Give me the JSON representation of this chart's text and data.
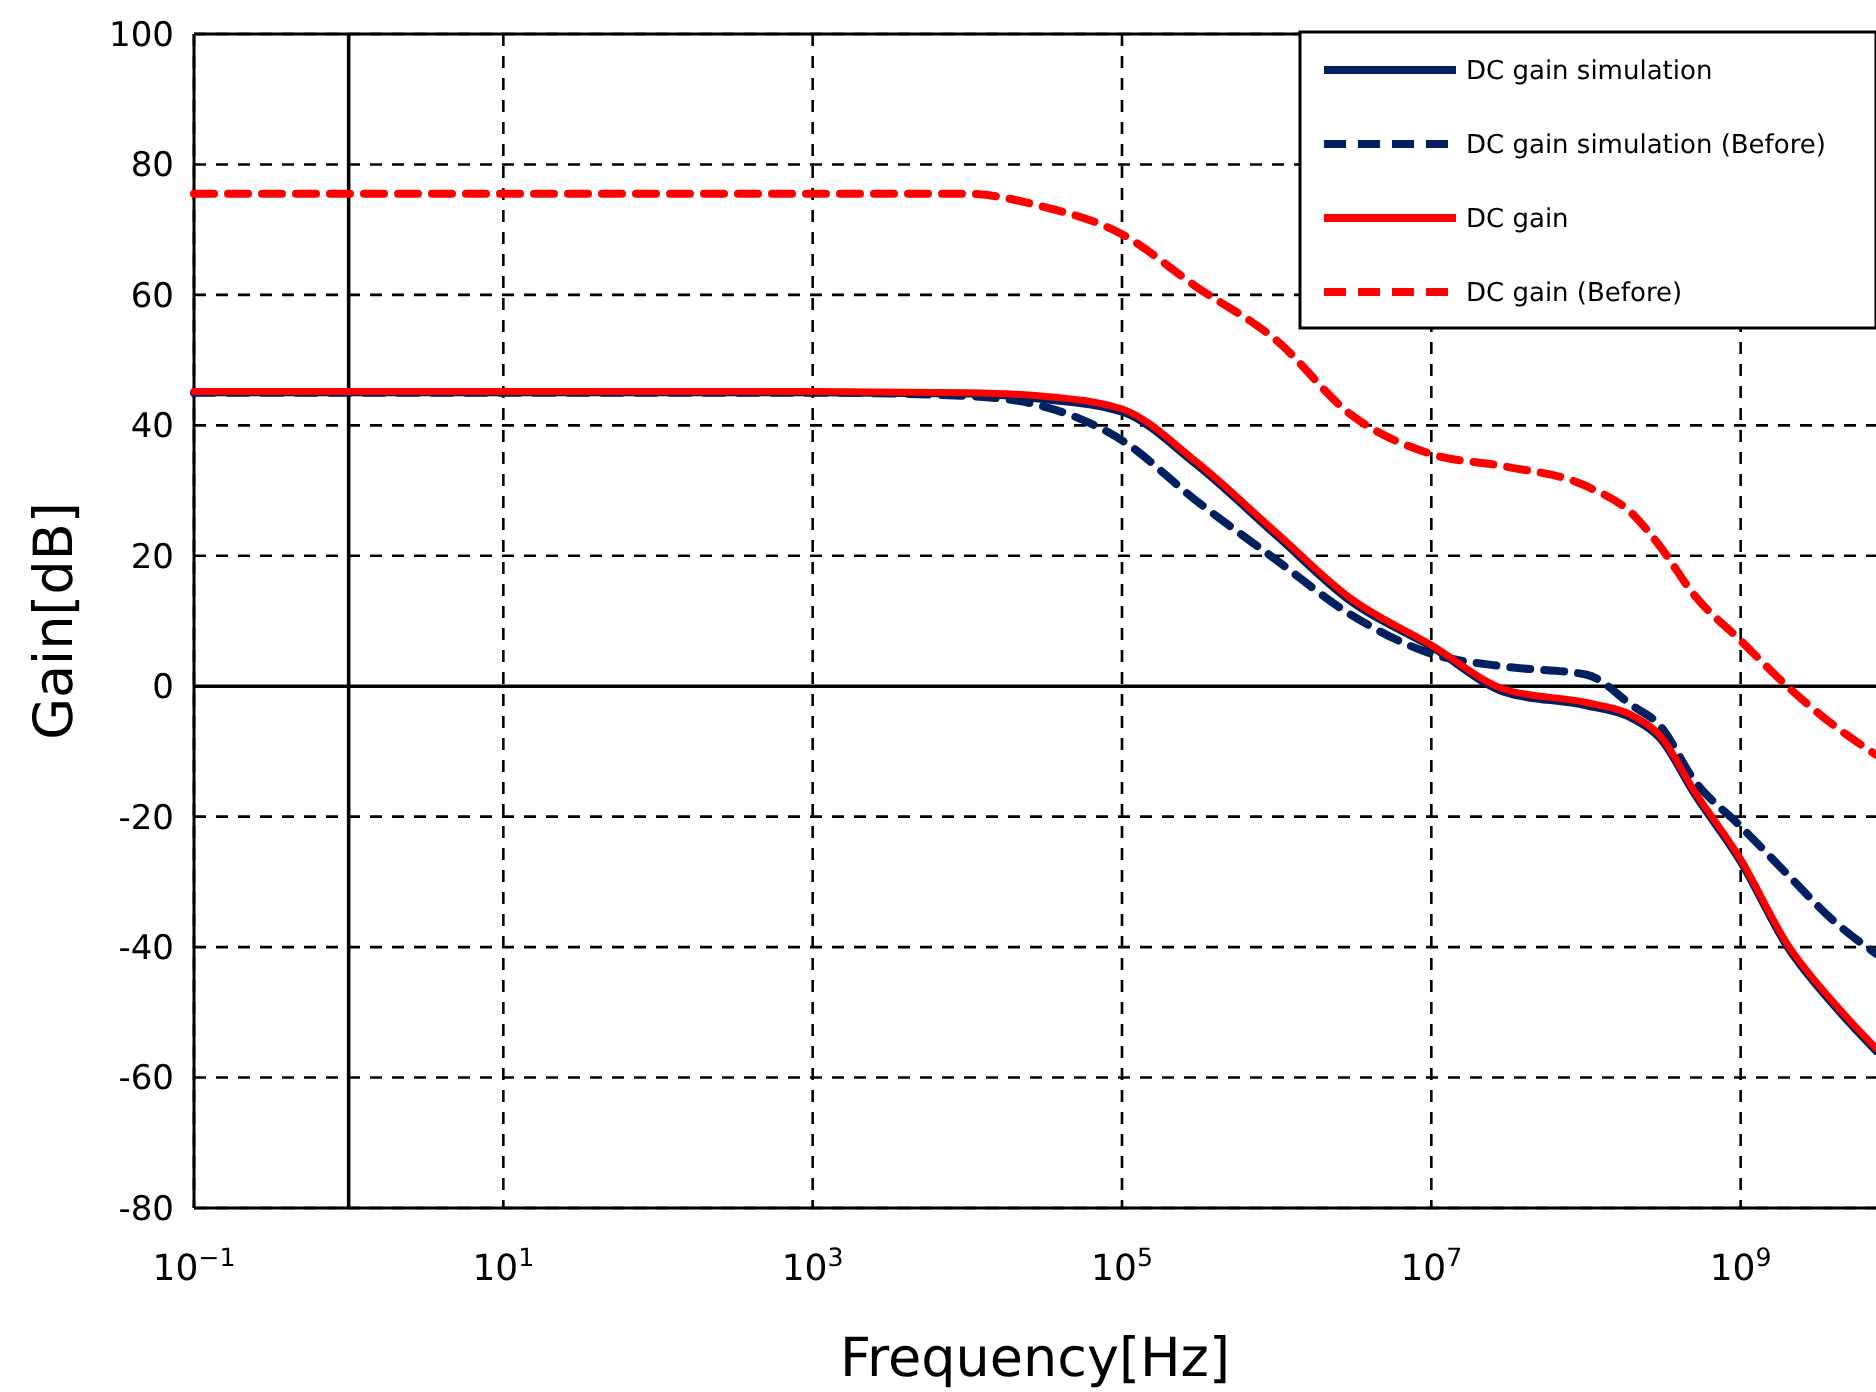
{
  "chart_data": {
    "type": "line",
    "xlabel": "Frequency[Hz]",
    "ylabel": "Gain[dB]",
    "log": "x",
    "x": [
      0.1,
      1000,
      10000,
      30000,
      100000,
      300000,
      1000000,
      3000000,
      10000000,
      30000000,
      100000000,
      200000000,
      300000000,
      500000000,
      1000000000,
      2000000000,
      4000000000,
      7500000000
    ],
    "series": [
      {
        "name": "DC gain simulation",
        "color": "#002060",
        "line_style": "solid",
        "values": [
          45,
          45,
          44.8,
          44,
          42,
          34,
          23,
          13,
          6,
          -1,
          -3,
          -5,
          -8,
          -16.5,
          -27,
          -40,
          -49,
          -56
        ]
      },
      {
        "name": "DC gain simulation (Before)",
        "color": "#002060",
        "line_style": "dashed",
        "values": [
          45,
          45,
          44.5,
          43,
          37.7,
          28.5,
          19.3,
          11,
          5,
          3,
          1.8,
          -3,
          -6,
          -14.4,
          -21.5,
          -28.8,
          -36,
          -41
        ]
      },
      {
        "name": "DC gain",
        "color": "#ff0000",
        "line_style": "solid",
        "values": [
          45.2,
          45.2,
          45,
          44.5,
          42.5,
          34.5,
          23.5,
          13.5,
          6.3,
          -0.5,
          -2.5,
          -4.5,
          -7.5,
          -16,
          -26.5,
          -39.5,
          -48.5,
          -55.5
        ]
      },
      {
        "name": "DC gain (Before)",
        "color": "#ff0000",
        "line_style": "dashed",
        "values": [
          75.5,
          75.5,
          75.5,
          73.6,
          69.3,
          61.3,
          53,
          41.7,
          35.6,
          33.7,
          30.7,
          26.4,
          21.5,
          14,
          7,
          0,
          -6,
          -10.5
        ]
      }
    ],
    "xlim": [
      0.1,
      7500000000
    ],
    "xticks": [
      {
        "value": 0.1,
        "label": "10$^{−1}$"
      },
      {
        "value": 10,
        "label": "10$^{1}$"
      },
      {
        "value": 1000,
        "label": "10$^{3}$"
      },
      {
        "value": 100000,
        "label": "10$^{5}$"
      },
      {
        "value": 10000000,
        "label": "10$^{7}$"
      },
      {
        "value": 1000000000,
        "label": "10$^{9}$"
      }
    ],
    "ylim": [
      -80,
      100
    ],
    "yticks": [
      -80,
      -60,
      -40,
      -20,
      0,
      20,
      40,
      60,
      80,
      100
    ],
    "grid": true,
    "legend": "top right",
    "marker": "none",
    "ref_lines": [
      {
        "axis": "x",
        "value": 1,
        "color": "#000000",
        "line_style": "solid"
      },
      {
        "axis": "y",
        "value": 0,
        "color": "#000000",
        "line_style": "solid"
      }
    ]
  }
}
